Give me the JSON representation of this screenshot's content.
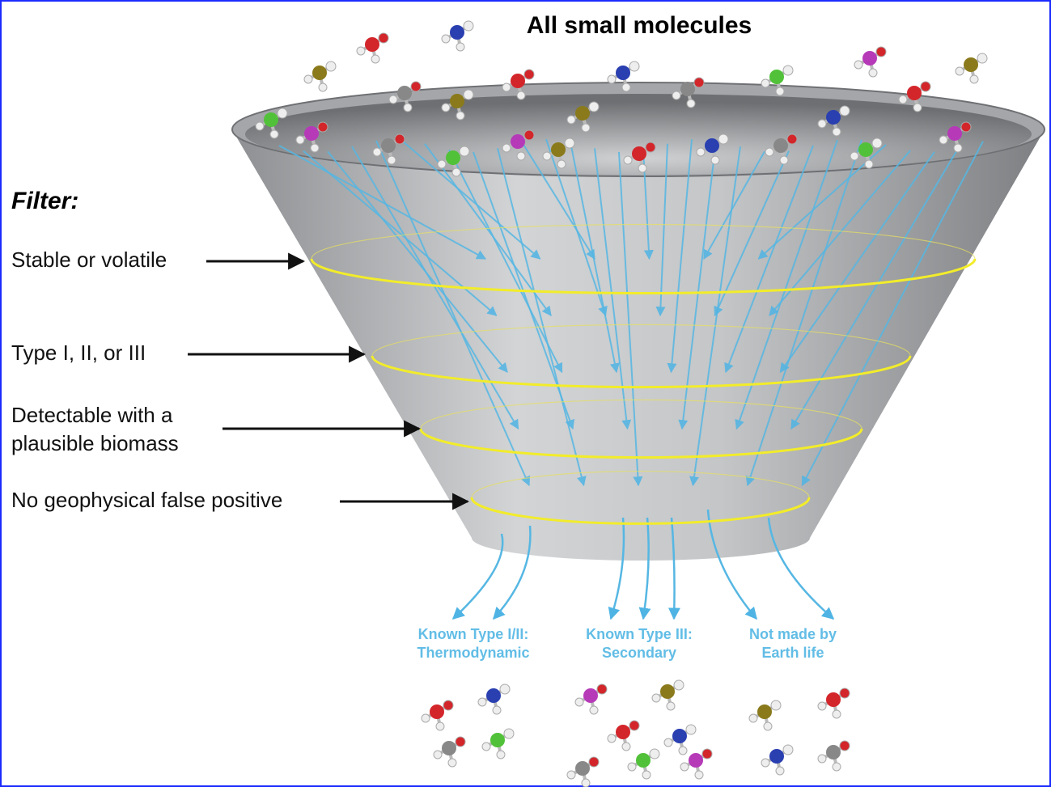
{
  "title": "All small molecules",
  "filter_heading": "Filter:",
  "filters": [
    {
      "lines": [
        "Stable or volatile"
      ]
    },
    {
      "lines": [
        "Type I, II, or III"
      ]
    },
    {
      "lines": [
        "Detectable with a",
        "plausible biomass"
      ]
    },
    {
      "lines": [
        "No geophysical false positive"
      ]
    }
  ],
  "outputs": [
    {
      "lines": [
        "Known Type I/II:",
        "Thermodynamic"
      ]
    },
    {
      "lines": [
        "Known Type III:",
        "Secondary"
      ]
    },
    {
      "lines": [
        "Not made by",
        "Earth life"
      ]
    }
  ]
}
